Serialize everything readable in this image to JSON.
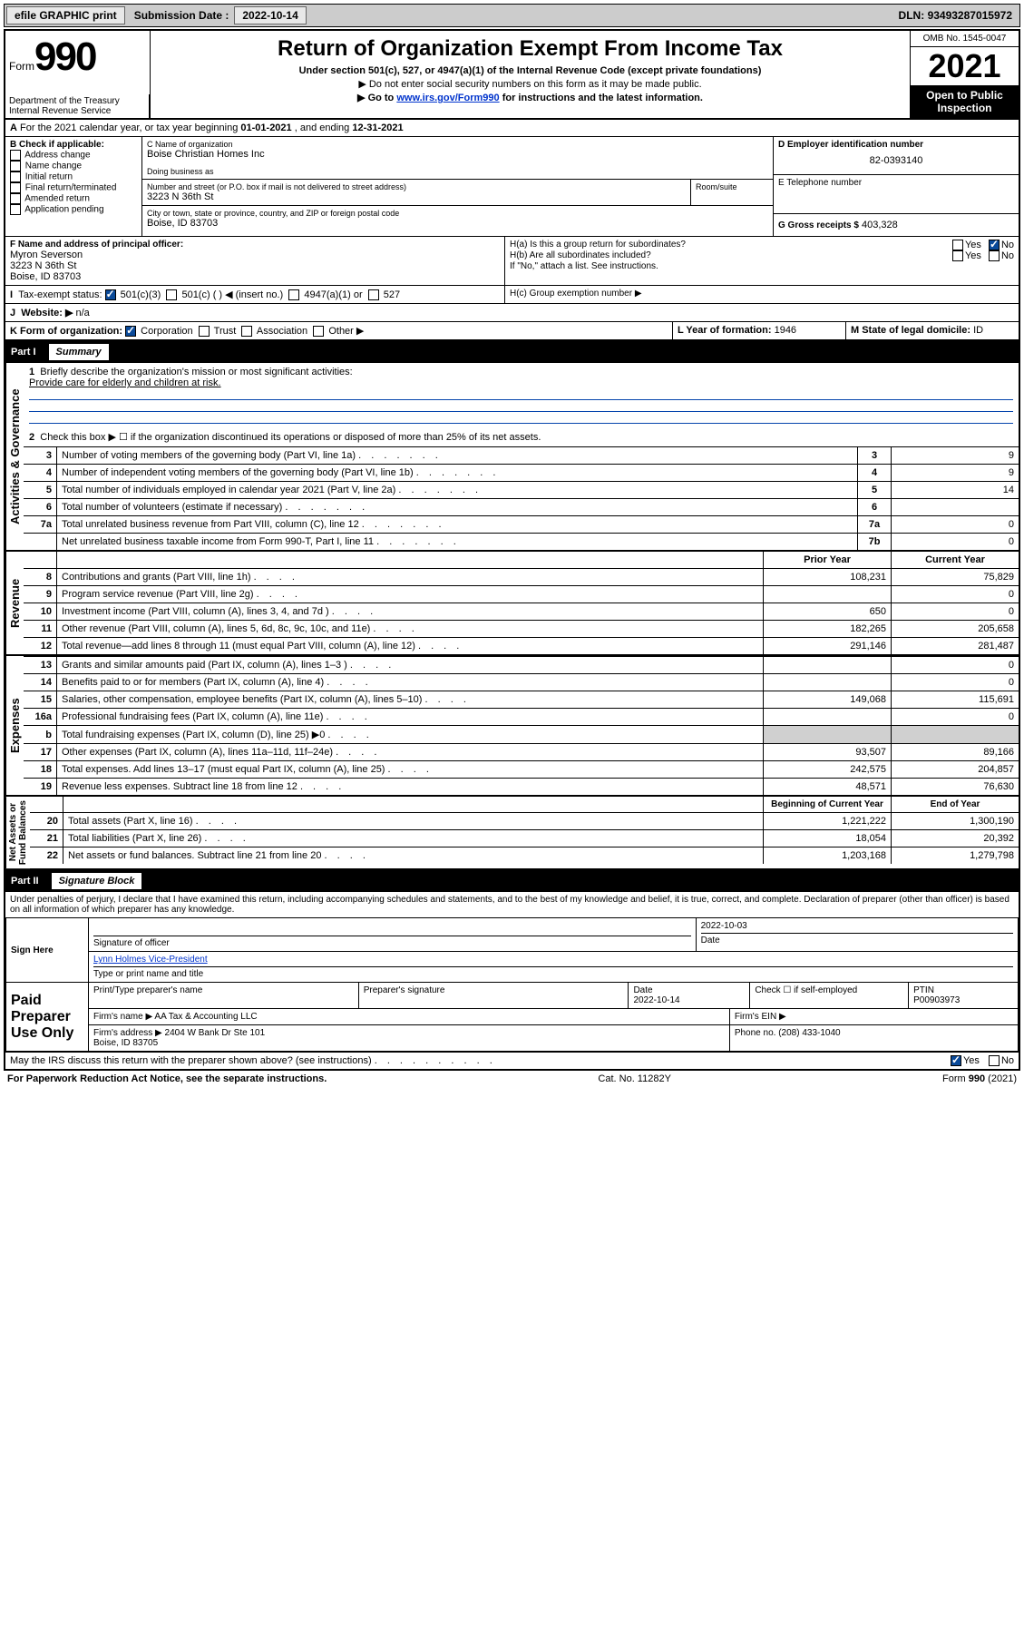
{
  "topbar": {
    "efile": "efile GRAPHIC print",
    "subdate_lbl": "Submission Date :",
    "subdate": "2022-10-14",
    "dln_lbl": "DLN:",
    "dln": "93493287015972"
  },
  "header": {
    "form_word": "Form",
    "form_num": "990",
    "title": "Return of Organization Exempt From Income Tax",
    "sub": "Under section 501(c), 527, or 4947(a)(1) of the Internal Revenue Code (except private foundations)",
    "note1": "▶ Do not enter social security numbers on this form as it may be made public.",
    "note2_pre": "▶ Go to ",
    "note2_link": "www.irs.gov/Form990",
    "note2_post": " for instructions and the latest information.",
    "dept": "Department of the Treasury\nInternal Revenue Service",
    "omb": "OMB No. 1545-0047",
    "year": "2021",
    "open": "Open to Public Inspection"
  },
  "lineA": {
    "text_pre": "For the 2021 calendar year, or tax year beginning ",
    "begin": "01-01-2021",
    "mid": " , and ending ",
    "end": "12-31-2021"
  },
  "boxB": {
    "label": "B Check if applicable:",
    "items": [
      "Address change",
      "Name change",
      "Initial return",
      "Final return/terminated",
      "Amended return",
      "Application pending"
    ]
  },
  "boxC": {
    "name_lbl": "C Name of organization",
    "name": "Boise Christian Homes Inc",
    "dba_lbl": "Doing business as",
    "street_lbl": "Number and street (or P.O. box if mail is not delivered to street address)",
    "room_lbl": "Room/suite",
    "street": "3223 N 36th St",
    "city_lbl": "City or town, state or province, country, and ZIP or foreign postal code",
    "city": "Boise, ID  83703"
  },
  "boxD": {
    "lbl": "D Employer identification number",
    "val": "82-0393140"
  },
  "boxE": {
    "lbl": "E Telephone number",
    "val": ""
  },
  "boxG": {
    "lbl": "G Gross receipts $",
    "val": "403,328"
  },
  "boxF": {
    "lbl": "F Name and address of principal officer:",
    "name": "Myron Severson",
    "addr1": "3223 N 36th St",
    "addr2": "Boise, ID  83703"
  },
  "boxH": {
    "a": "H(a)  Is this a group return for subordinates?",
    "b": "H(b)  Are all subordinates included?",
    "b_note": "If \"No,\" attach a list. See instructions.",
    "c": "H(c)  Group exemption number ▶",
    "yes": "Yes",
    "no": "No"
  },
  "boxI": {
    "lbl": "Tax-exempt status:",
    "o1": "501(c)(3)",
    "o2": "501(c) (  ) ◀ (insert no.)",
    "o3": "4947(a)(1) or",
    "o4": "527"
  },
  "boxJ": {
    "lbl": "Website: ▶",
    "val": "n/a"
  },
  "boxK": {
    "lbl": "K Form of organization:",
    "o1": "Corporation",
    "o2": "Trust",
    "o3": "Association",
    "o4": "Other ▶"
  },
  "boxL": {
    "lbl": "L Year of formation:",
    "val": "1946"
  },
  "boxM": {
    "lbl": "M State of legal domicile:",
    "val": "ID"
  },
  "partI": {
    "bar": "Part I",
    "title": "Summary"
  },
  "summary": {
    "line1_lbl": "Briefly describe the organization's mission or most significant activities:",
    "line1_val": "Provide care for elderly and children at risk.",
    "line2": "Check this box ▶ ☐  if the organization discontinued its operations or disposed of more than 25% of its net assets.",
    "rows_gov": [
      {
        "n": "3",
        "t": "Number of voting members of the governing body (Part VI, line 1a)",
        "r": "3",
        "v": "9"
      },
      {
        "n": "4",
        "t": "Number of independent voting members of the governing body (Part VI, line 1b)",
        "r": "4",
        "v": "9"
      },
      {
        "n": "5",
        "t": "Total number of individuals employed in calendar year 2021 (Part V, line 2a)",
        "r": "5",
        "v": "14"
      },
      {
        "n": "6",
        "t": "Total number of volunteers (estimate if necessary)",
        "r": "6",
        "v": ""
      },
      {
        "n": "7a",
        "t": "Total unrelated business revenue from Part VIII, column (C), line 12",
        "r": "7a",
        "v": "0"
      },
      {
        "n": "",
        "t": "Net unrelated business taxable income from Form 990-T, Part I, line 11",
        "r": "7b",
        "v": "0"
      }
    ],
    "hdr_prior": "Prior Year",
    "hdr_curr": "Current Year",
    "rows_rev": [
      {
        "n": "8",
        "t": "Contributions and grants (Part VIII, line 1h)",
        "p": "108,231",
        "c": "75,829"
      },
      {
        "n": "9",
        "t": "Program service revenue (Part VIII, line 2g)",
        "p": "",
        "c": "0"
      },
      {
        "n": "10",
        "t": "Investment income (Part VIII, column (A), lines 3, 4, and 7d )",
        "p": "650",
        "c": "0"
      },
      {
        "n": "11",
        "t": "Other revenue (Part VIII, column (A), lines 5, 6d, 8c, 9c, 10c, and 11e)",
        "p": "182,265",
        "c": "205,658"
      },
      {
        "n": "12",
        "t": "Total revenue—add lines 8 through 11 (must equal Part VIII, column (A), line 12)",
        "p": "291,146",
        "c": "281,487"
      }
    ],
    "rows_exp": [
      {
        "n": "13",
        "t": "Grants and similar amounts paid (Part IX, column (A), lines 1–3 )",
        "p": "",
        "c": "0"
      },
      {
        "n": "14",
        "t": "Benefits paid to or for members (Part IX, column (A), line 4)",
        "p": "",
        "c": "0"
      },
      {
        "n": "15",
        "t": "Salaries, other compensation, employee benefits (Part IX, column (A), lines 5–10)",
        "p": "149,068",
        "c": "115,691"
      },
      {
        "n": "16a",
        "t": "Professional fundraising fees (Part IX, column (A), line 11e)",
        "p": "",
        "c": "0"
      },
      {
        "n": "b",
        "t": "Total fundraising expenses (Part IX, column (D), line 25) ▶0",
        "p": "shade",
        "c": "shade"
      },
      {
        "n": "17",
        "t": "Other expenses (Part IX, column (A), lines 11a–11d, 11f–24e)",
        "p": "93,507",
        "c": "89,166"
      },
      {
        "n": "18",
        "t": "Total expenses. Add lines 13–17 (must equal Part IX, column (A), line 25)",
        "p": "242,575",
        "c": "204,857"
      },
      {
        "n": "19",
        "t": "Revenue less expenses. Subtract line 18 from line 12",
        "p": "48,571",
        "c": "76,630"
      }
    ],
    "hdr_boy": "Beginning of Current Year",
    "hdr_eoy": "End of Year",
    "rows_bal": [
      {
        "n": "20",
        "t": "Total assets (Part X, line 16)",
        "p": "1,221,222",
        "c": "1,300,190"
      },
      {
        "n": "21",
        "t": "Total liabilities (Part X, line 26)",
        "p": "18,054",
        "c": "20,392"
      },
      {
        "n": "22",
        "t": "Net assets or fund balances. Subtract line 21 from line 20",
        "p": "1,203,168",
        "c": "1,279,798"
      }
    ],
    "vlabels": {
      "gov": "Activities & Governance",
      "rev": "Revenue",
      "exp": "Expenses",
      "bal": "Net Assets or\nFund Balances"
    }
  },
  "partII": {
    "bar": "Part II",
    "title": "Signature Block"
  },
  "sig": {
    "perjury": "Under penalties of perjury, I declare that I have examined this return, including accompanying schedules and statements, and to the best of my knowledge and belief, it is true, correct, and complete. Declaration of preparer (other than officer) is based on all information of which preparer has any knowledge.",
    "sign_here": "Sign Here",
    "sig_officer": "Signature of officer",
    "date_lbl": "Date",
    "date": "2022-10-03",
    "printed": "Lynn Holmes  Vice-President",
    "printed_lbl": "Type or print name and title",
    "paid": "Paid Preparer Use Only",
    "prep_name_lbl": "Print/Type preparer's name",
    "prep_sig_lbl": "Preparer's signature",
    "prep_date_lbl": "Date",
    "prep_date": "2022-10-14",
    "check_lbl": "Check ☐ if self-employed",
    "ptin_lbl": "PTIN",
    "ptin": "P00903973",
    "firm_name_lbl": "Firm's name    ▶",
    "firm_name": "AA Tax & Accounting LLC",
    "firm_ein_lbl": "Firm's EIN ▶",
    "firm_addr_lbl": "Firm's address ▶",
    "firm_addr": "2404 W Bank Dr Ste 101\nBoise, ID  83705",
    "phone_lbl": "Phone no.",
    "phone": "(208) 433-1040",
    "discuss": "May the IRS discuss this return with the preparer shown above? (see instructions)",
    "yes": "Yes",
    "no": "No"
  },
  "footer": {
    "pra": "For Paperwork Reduction Act Notice, see the separate instructions.",
    "cat": "Cat. No. 11282Y",
    "form": "Form 990 (2021)"
  }
}
